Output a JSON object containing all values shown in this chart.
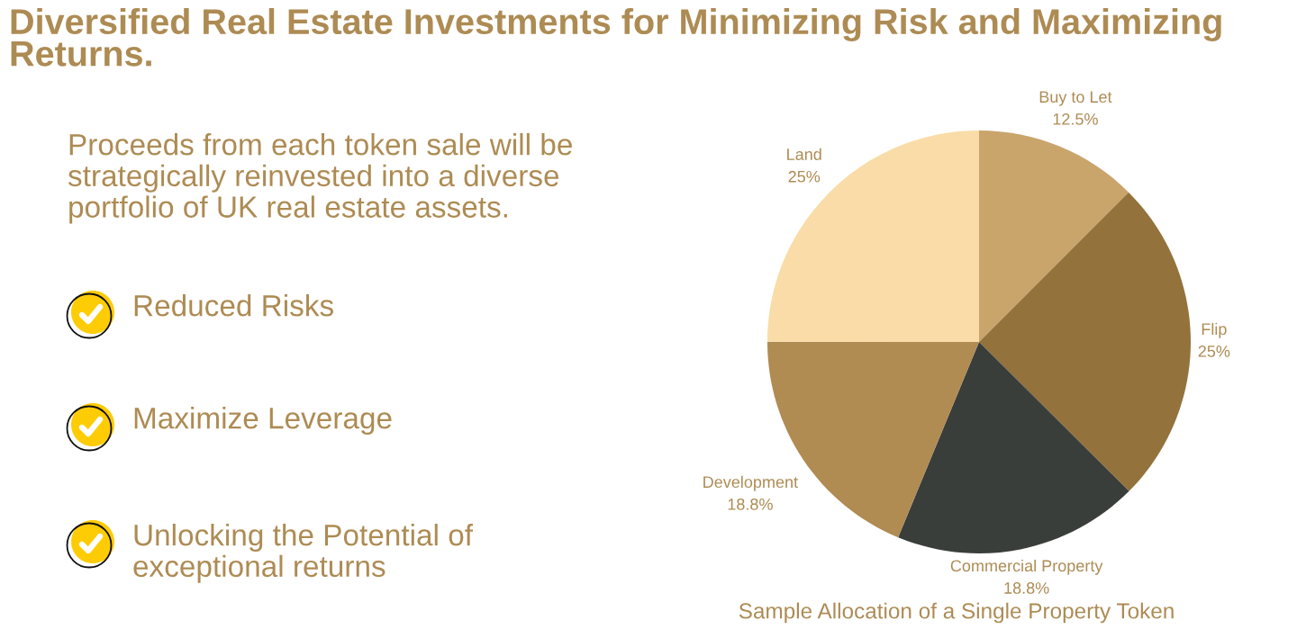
{
  "chart_data": {
    "type": "pie",
    "title": "Diversified Real Estate Investments for Minimizing Risk and Maximizing Returns.",
    "subtitle": "Proceeds from each token sale will be\nstrategically reinvested into a diverse\nportfolio of UK real estate assets.",
    "annotations": [
      "Reduced Risks",
      "Maximize Leverage",
      "Unlocking the Potential of\nexceptional returns"
    ],
    "xlabel": "Sample Allocation of a Single Property Token",
    "categories": [
      "Buy to Let",
      "Flip",
      "Commercial Property",
      "Development",
      "Land"
    ],
    "values": [
      12.5,
      25,
      18.8,
      18.8,
      25
    ],
    "value_labels": [
      "12.5%",
      "25%",
      "18.8%",
      "18.8%",
      "25%"
    ],
    "colors": [
      "#c9a56c",
      "#93723c",
      "#3a3e3a",
      "#b08b52",
      "#f9dca7"
    ]
  }
}
